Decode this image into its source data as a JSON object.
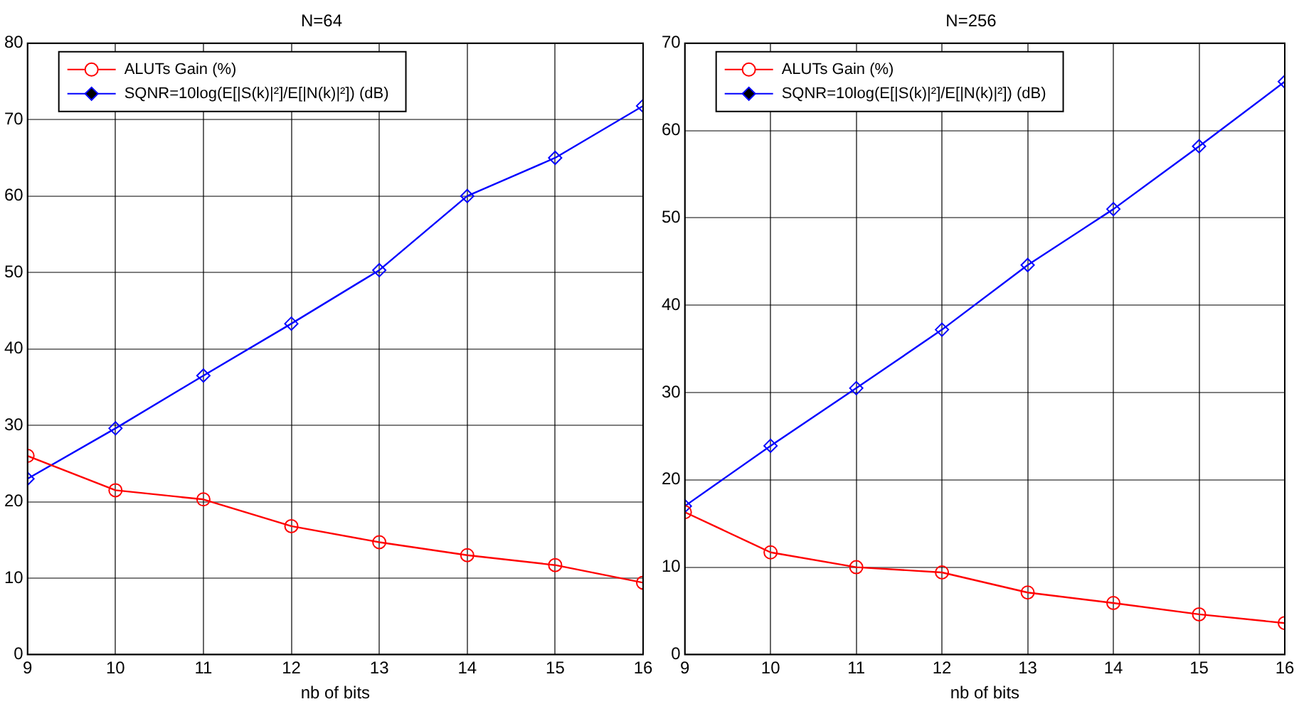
{
  "chart_data": [
    {
      "type": "line",
      "title": "N=64",
      "xlabel": "nb of bits",
      "x": [
        9,
        10,
        11,
        12,
        13,
        14,
        15,
        16
      ],
      "xlim": [
        9,
        16
      ],
      "xticks": [
        9,
        10,
        11,
        12,
        13,
        14,
        15,
        16
      ],
      "ylim": [
        0,
        80
      ],
      "yticks": [
        0,
        10,
        20,
        30,
        40,
        50,
        60,
        70,
        80
      ],
      "grid": true,
      "legend": "top left",
      "series": [
        {
          "name": "ALUTs Gain (%)",
          "color": "#ff0000",
          "marker": "circle",
          "values": [
            26,
            21.5,
            20.3,
            16.8,
            14.7,
            13,
            11.7,
            9.4
          ]
        },
        {
          "name": "SQNR=10log(E[|S(k)|²]/E[|N(k)|²]) (dB)",
          "color": "#0000ff",
          "marker": "diamond",
          "values": [
            23,
            29.6,
            36.5,
            43.3,
            50.3,
            60,
            65,
            71.8
          ]
        }
      ]
    },
    {
      "type": "line",
      "title": "N=256",
      "xlabel": "nb of bits",
      "x": [
        9,
        10,
        11,
        12,
        13,
        14,
        15,
        16
      ],
      "xlim": [
        9,
        16
      ],
      "xticks": [
        9,
        10,
        11,
        12,
        13,
        14,
        15,
        16
      ],
      "ylim": [
        0,
        70
      ],
      "yticks": [
        0,
        10,
        20,
        30,
        40,
        50,
        60,
        70
      ],
      "grid": true,
      "legend": "top left",
      "series": [
        {
          "name": "ALUTs Gain (%)",
          "color": "#ff0000",
          "marker": "circle",
          "values": [
            16.3,
            11.7,
            10,
            9.4,
            7.1,
            5.9,
            4.6,
            3.6
          ]
        },
        {
          "name": "SQNR=10log(E[|S(k)|²]/E[|N(k)|²]) (dB)",
          "color": "#0000ff",
          "marker": "diamond",
          "values": [
            17,
            23.9,
            30.5,
            37.2,
            44.6,
            51,
            58.2,
            65.6
          ]
        }
      ]
    }
  ]
}
